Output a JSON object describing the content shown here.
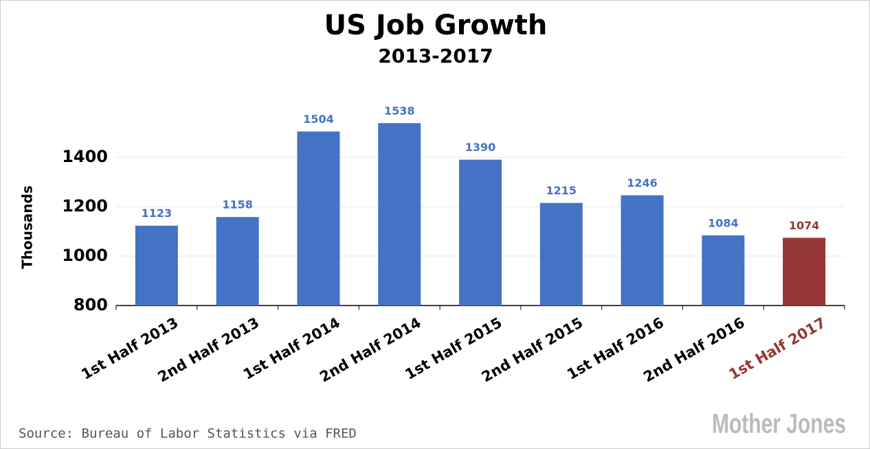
{
  "chart_data": {
    "type": "bar",
    "title": "US Job Growth",
    "subtitle": "2013-2017",
    "y_label": "Thousands",
    "categories": [
      "1st Half 2013",
      "2nd Half 2013",
      "1st Half 2014",
      "2nd Half 2014",
      "1st Half 2015",
      "2nd Half 2015",
      "1st Half 2016",
      "2nd Half 2016",
      "1st Half 2017"
    ],
    "values": [
      1123,
      1158,
      1504,
      1538,
      1390,
      1215,
      1246,
      1084,
      1074
    ],
    "colors": [
      "#4472c4",
      "#4472c4",
      "#4472c4",
      "#4472c4",
      "#4472c4",
      "#4472c4",
      "#4472c4",
      "#4472c4",
      "#963634"
    ],
    "ylim": [
      800,
      1600
    ],
    "yticks": [
      800,
      1000,
      1200,
      1400
    ],
    "grid": true,
    "source": "Source: Bureau of Labor Statistics via FRED",
    "watermark": "Mother Jones"
  }
}
